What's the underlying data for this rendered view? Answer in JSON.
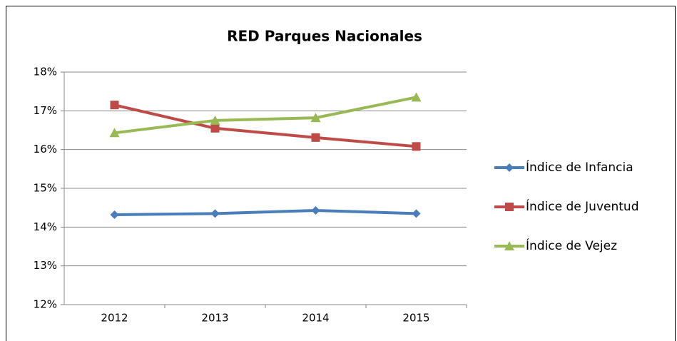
{
  "chart_data": {
    "type": "line",
    "title": "RED Parques Nacionales",
    "categories": [
      "2012",
      "2013",
      "2014",
      "2015"
    ],
    "series": [
      {
        "name": "Índice de Infancia",
        "color": "#4a7ebb",
        "marker": "diamond",
        "values": [
          14.32,
          14.35,
          14.43,
          14.35
        ]
      },
      {
        "name": "Índice de Juventud",
        "color": "#be4b48",
        "marker": "square",
        "values": [
          17.15,
          16.55,
          16.31,
          16.08
        ]
      },
      {
        "name": "Índice de Vejez",
        "color": "#98b954",
        "marker": "triangle",
        "values": [
          16.43,
          16.75,
          16.82,
          17.35
        ]
      }
    ],
    "ylim": [
      12,
      18
    ],
    "yticks": [
      {
        "value": 12,
        "label": "12%"
      },
      {
        "value": 13,
        "label": "13%"
      },
      {
        "value": 14,
        "label": "14%"
      },
      {
        "value": 15,
        "label": "15%"
      },
      {
        "value": 16,
        "label": "16%"
      },
      {
        "value": 17,
        "label": "17%"
      },
      {
        "value": 18,
        "label": "18%"
      }
    ],
    "grid": true,
    "legend": "right"
  }
}
